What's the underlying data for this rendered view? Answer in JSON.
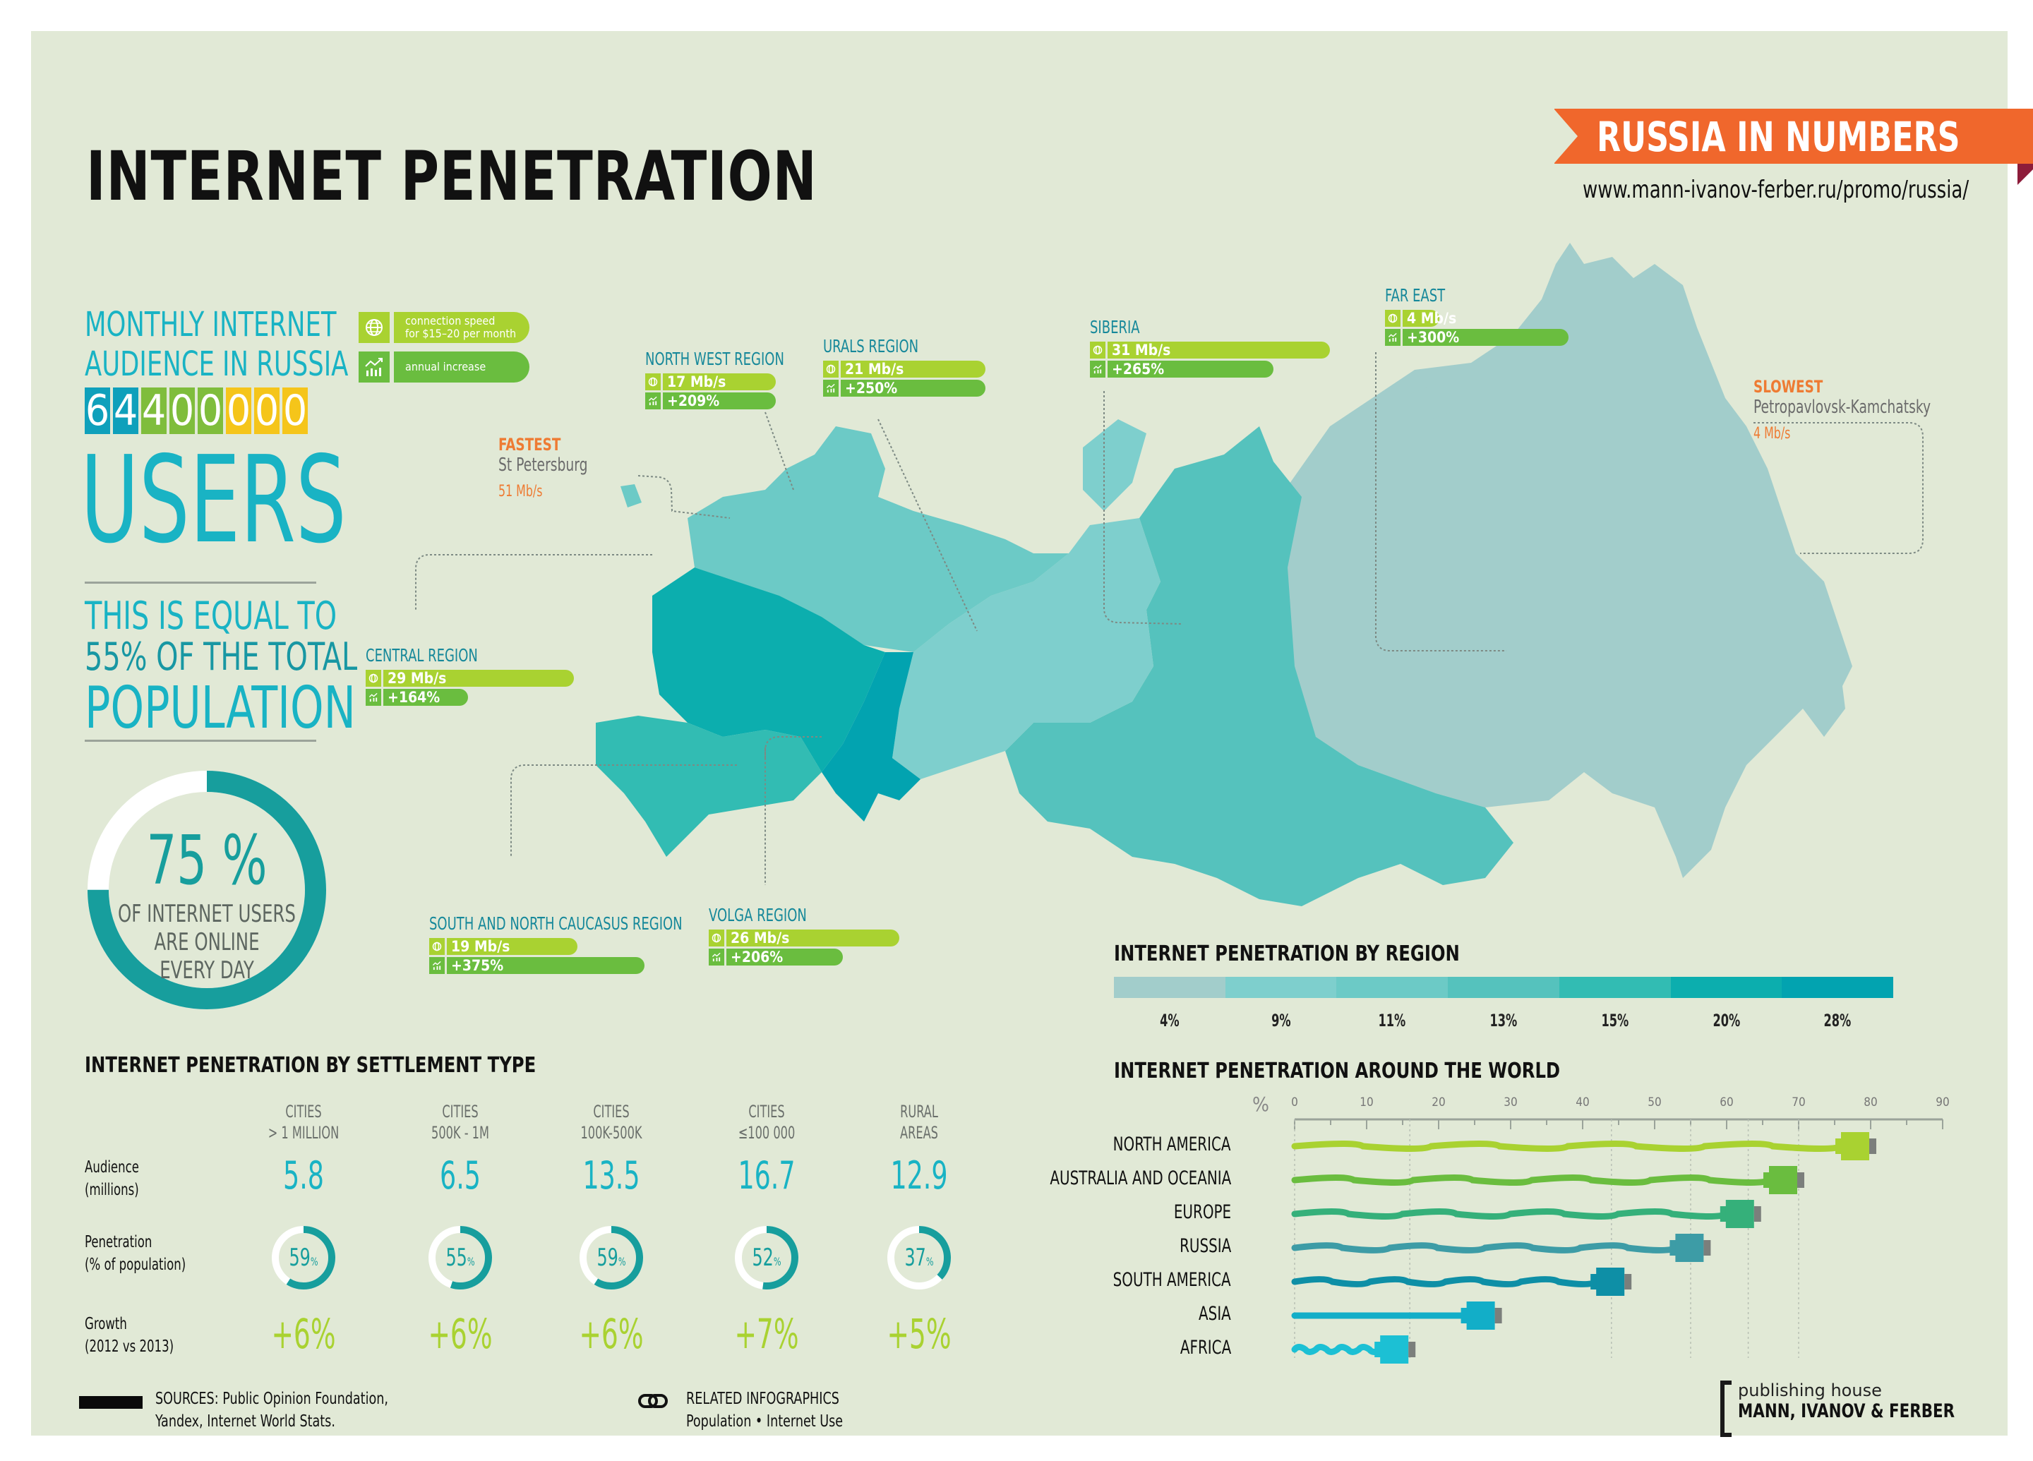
{
  "header": {
    "title": "INTERNET PENETRATION",
    "ribbon": "RUSSIA IN NUMBERS",
    "url": "www.mann-ivanov-ferber.ru/promo/russia/"
  },
  "audience": {
    "heading_line1": "MONTHLY INTERNET",
    "heading_line2": "AUDIENCE IN RUSSIA",
    "digits": [
      "6",
      "4",
      "4",
      "0",
      "0",
      "0",
      "0",
      "0"
    ],
    "digit_colors": [
      "#0fa0bb",
      "#0fa0bb",
      "#7fbd3c",
      "#7fbd3c",
      "#7fbd3c",
      "#f5c51a",
      "#f5c51a",
      "#f5c51a"
    ],
    "users_label": "USERS",
    "equal_line1": "THIS IS EQUAL TO",
    "equal_line2": "55% OF THE TOTAL",
    "equal_line3": "POPULATION"
  },
  "daily": {
    "percent": "75 %",
    "value": 75,
    "line1": "OF INTERNET USERS",
    "line2": "ARE ONLINE",
    "line3": "EVERY DAY"
  },
  "legend": {
    "speed_label": "connection speed for $15–20 per month",
    "speed_line1": "connection speed",
    "speed_line2": "for $15–20 per month",
    "increase_label": "annual increase",
    "icons": [
      "globe-icon",
      "growth-chart-icon"
    ]
  },
  "fastest": {
    "label": "FASTEST",
    "city": "St Petersburg",
    "speed": "51 Mb/s"
  },
  "slowest": {
    "label": "SLOWEST",
    "city": "Petropavlovsk-Kamchatsky",
    "speed": "4 Mb/s"
  },
  "regions": [
    {
      "name": "NORTH WEST REGION",
      "speed": "17 Mb/s",
      "increase": "+209%"
    },
    {
      "name": "URALS REGION",
      "speed": "21 Mb/s",
      "increase": "+250%"
    },
    {
      "name": "SIBERIA",
      "speed": "31 Mb/s",
      "increase": "+265%"
    },
    {
      "name": "FAR EAST",
      "speed": "4 Mb/s",
      "increase": "+300%"
    },
    {
      "name": "CENTRAL REGION",
      "speed": "29 Mb/s",
      "increase": "+164%"
    },
    {
      "name": "SOUTH AND NORTH CAUCASUS REGION",
      "speed": "19 Mb/s",
      "increase": "+375%"
    },
    {
      "name": "VOLGA REGION",
      "speed": "26 Mb/s",
      "increase": "+206%"
    }
  ],
  "region_scale": {
    "title": "INTERNET PENETRATION BY REGION",
    "labels": [
      "4%",
      "9%",
      "11%",
      "13%",
      "15%",
      "20%",
      "28%"
    ],
    "colors": [
      "#a2cdcb",
      "#7ecfcd",
      "#6ccac6",
      "#55c2bd",
      "#32bcb3",
      "#0caeae",
      "#02a3b0"
    ]
  },
  "settlement": {
    "title": "INTERNET PENETRATION BY SETTLEMENT TYPE",
    "row_labels": {
      "audience_1": "Audience",
      "audience_2": "(millions)",
      "penetration_1": "Penetration",
      "penetration_2": "(% of population)",
      "growth_1": "Growth",
      "growth_2": "(2012 vs 2013)"
    },
    "columns": [
      {
        "h1": "CITIES",
        "h2": "> 1 MILLION",
        "audience": "5.8",
        "penetration": "59",
        "growth": "+6%"
      },
      {
        "h1": "CITIES",
        "h2": "500K - 1M",
        "audience": "6.5",
        "penetration": "55",
        "growth": "+6%"
      },
      {
        "h1": "CITIES",
        "h2": "100K-500K",
        "audience": "13.5",
        "penetration": "59",
        "growth": "+6%"
      },
      {
        "h1": "CITIES",
        "h2": "≤100 000",
        "audience": "16.7",
        "penetration": "52",
        "growth": "+7%"
      },
      {
        "h1": "RURAL",
        "h2": "AREAS",
        "audience": "12.9",
        "penetration": "37",
        "growth": "+5%"
      }
    ]
  },
  "world": {
    "title": "INTERNET PENETRATION AROUND THE WORLD",
    "unit": "%",
    "ticks": [
      "0",
      "10",
      "20",
      "30",
      "40",
      "50",
      "60",
      "70",
      "80",
      "90"
    ]
  },
  "chart_data": {
    "type": "bar",
    "title": "INTERNET PENETRATION AROUND THE WORLD",
    "xlabel": "%",
    "ylabel": "",
    "xlim": [
      0,
      90
    ],
    "categories": [
      "NORTH AMERICA",
      "AUSTRALIA AND OCEANIA",
      "EUROPE",
      "RUSSIA",
      "SOUTH AMERICA",
      "ASIA",
      "AFRICA"
    ],
    "values": [
      80,
      70,
      64,
      57,
      46,
      28,
      16
    ],
    "colors": [
      "#a9d231",
      "#6abd3f",
      "#35b07a",
      "#3d9ca6",
      "#0e8fa6",
      "#12aec8",
      "#1cc0d4"
    ],
    "grid": true,
    "legend": "none"
  },
  "footer": {
    "sources_line1": "SOURCES: Public Opinion Foundation,",
    "sources_line2": "Yandex, Internet World Stats.",
    "related_title": "RELATED INFOGRAPHICS",
    "related_links": "Population • Internet Use",
    "publisher_line1": "publishing house",
    "publisher_line2": "MANN, IVANOV & FERBER"
  }
}
